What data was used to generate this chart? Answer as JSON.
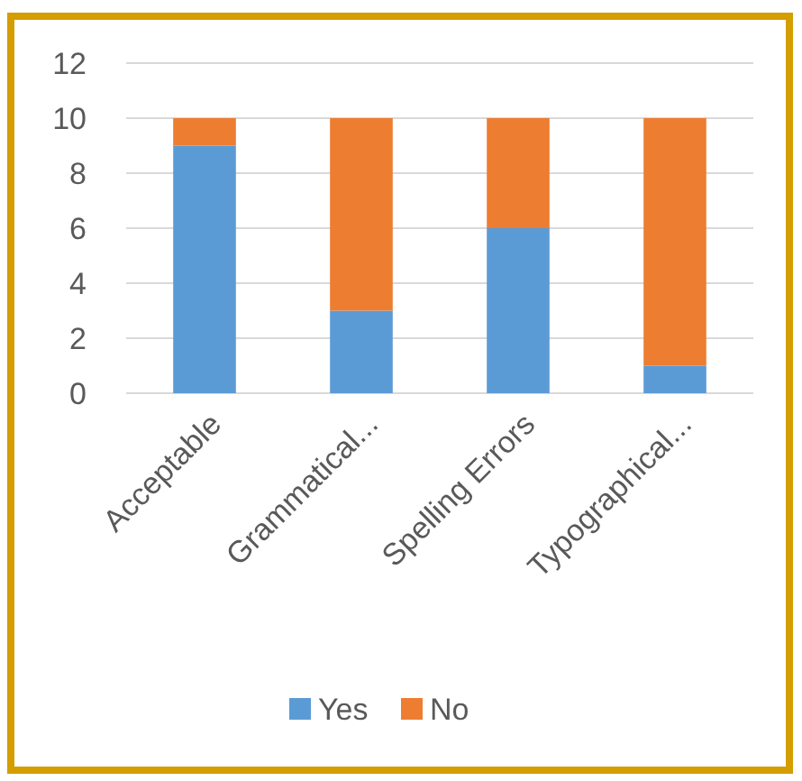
{
  "chart_data": {
    "type": "bar",
    "stacked": true,
    "categories": [
      "Acceptable",
      "Grammatical...",
      "Spelling Errors",
      "Typographical..."
    ],
    "series": [
      {
        "name": "Yes",
        "color": "#5b9bd5",
        "values": [
          9,
          3,
          6,
          1
        ]
      },
      {
        "name": "No",
        "color": "#ed7d31",
        "values": [
          1,
          7,
          4,
          9
        ]
      }
    ],
    "ylim": [
      0,
      12
    ],
    "yticks": [
      0,
      2,
      4,
      6,
      8,
      10,
      12
    ],
    "grid": "y",
    "legend": "bottom"
  }
}
